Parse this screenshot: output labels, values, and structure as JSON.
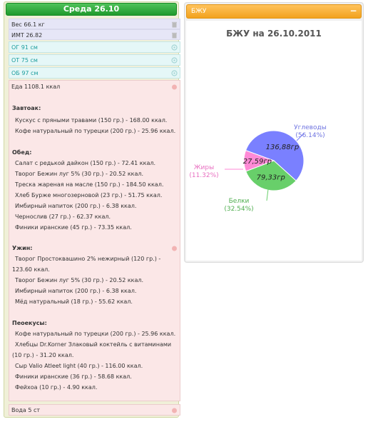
{
  "day": {
    "title": "Среда 26.10",
    "weight": "Вес 66.1 кг",
    "bmi": "ИМТ 26.82",
    "og": "ОГ 91 см",
    "ot": "ОТ 75 см",
    "ob": "ОБ 97 см",
    "food_total": "Еда 1108.1 ккал",
    "sections": [
      {
        "title": "Завтоак:",
        "items": [
          "Кускус с пряными травами (150 гр.) - 168.00 ккал.",
          "Кофе натуральный по турецки (200 гр.) - 25.96 ккал."
        ]
      },
      {
        "title": "Обед:",
        "items": [
          "Салат с редькой дайкон (150 гр.) - 72.41 ккал.",
          "Творог Бежин луг 5% (30 гр.) - 20.52 ккал.",
          "Треска жареная на масле (150 гр.) - 184.50 ккал.",
          "Хлеб Бурже многозерновой (23 гр.) - 51.75 ккал.",
          "Имбирный напиток (200 гр.) - 6.38 ккал.",
          "Чернослив (27 гр.) - 62.37 ккал.",
          "Финики иранские (45 гр.) - 73.35 ккал."
        ]
      },
      {
        "title": "Ужин:",
        "items": [
          "Творог Простоквашино 2% нежирный (120 гр.) -",
          "123.60 ккал.",
          "Творог Бежин луг 5% (30 гр.) - 20.52 ккал.",
          "Имбирный напиток (200 гр.) - 6.38 ккал.",
          "Мёд натуральный (18 гр.) - 55.62 ккал."
        ]
      },
      {
        "title": "Пеоекусы:",
        "items": [
          "Кофе натуральный по турецки (200 гр.) - 25.96 ккал.",
          "Хлебцы Dr.Korner Злаковый коктейль с витаминами",
          "(10 гр.) - 31.20 ккал.",
          "Сыр Valio Atleet light (40 гр.) - 116.00 ккал.",
          "Финики иранские (36 гр.) - 58.68 ккал.",
          "Фейхоа (10 гр.) - 4.90 ккал."
        ]
      }
    ],
    "water": "Вода 5 ст"
  },
  "bju_panel": {
    "header": "БЖУ",
    "collapse_icon": "minus-icon"
  },
  "chart_data": {
    "type": "pie",
    "title": "БЖУ на 26.10.2011",
    "slices": [
      {
        "name": "Углеводы",
        "value": 136.88,
        "value_label": "136,88гр",
        "percent_label": "(56.14%)",
        "color": "#7a80ff"
      },
      {
        "name": "Белки",
        "value": 79.33,
        "value_label": "79,33гр",
        "percent_label": "(32.54%)",
        "color": "#68cf6a"
      },
      {
        "name": "Жиры",
        "value": 27.59,
        "value_label": "27,59гр",
        "percent_label": "(11.32%)",
        "color": "#ff8ad6"
      }
    ]
  },
  "colors": {
    "day_header": "#2aa836",
    "bju_header": "#f6b03b",
    "teal_text": "#1a9c9c"
  }
}
